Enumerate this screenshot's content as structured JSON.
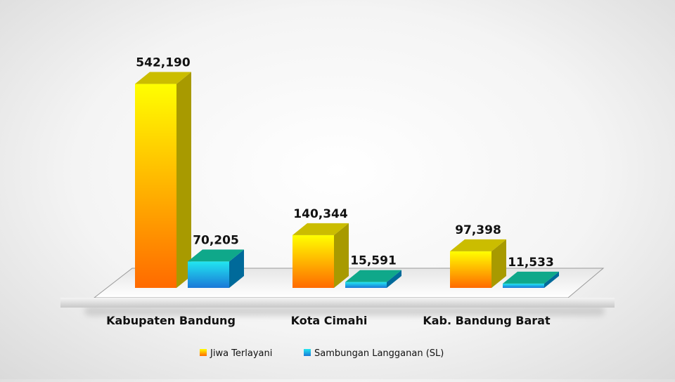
{
  "chart_data": {
    "type": "bar",
    "title": "",
    "xlabel": "",
    "ylabel": "",
    "categories": [
      "Kabupaten Bandung",
      "Kota Cimahi",
      "Kab. Bandung Barat"
    ],
    "series": [
      {
        "name": "Jiwa Terlayani",
        "values": [
          542190,
          140344,
          97398
        ],
        "labels": [
          "542,190",
          "140,344",
          "97,398"
        ],
        "color_top": "#ffff00",
        "color_bottom": "#ff6a00",
        "color_side": "#a89a00",
        "color_cap": "#cbbd00"
      },
      {
        "name": "Sambungan Langganan (SL)",
        "values": [
          70205,
          15591,
          11533
        ],
        "labels": [
          "70,205",
          "15,591",
          "11,533"
        ],
        "color_top": "#22e6f0",
        "color_bottom": "#1a78d8",
        "color_side": "#006a9a",
        "color_cap": "#0fa88a"
      }
    ],
    "ylim": [
      0,
      560000
    ],
    "grid": false,
    "legend_position": "bottom"
  }
}
